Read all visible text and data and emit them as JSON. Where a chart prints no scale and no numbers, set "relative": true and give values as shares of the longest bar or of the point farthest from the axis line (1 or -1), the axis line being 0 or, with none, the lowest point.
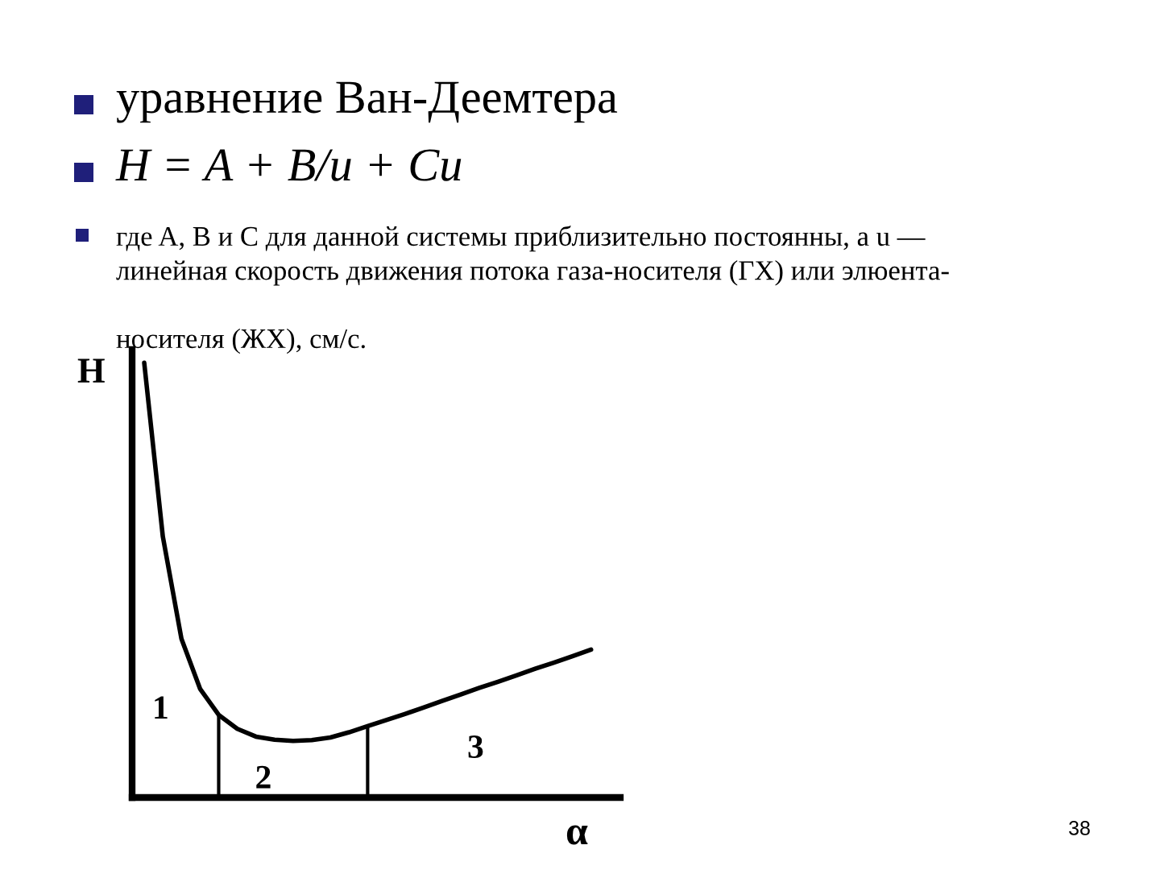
{
  "chart_data": {
    "type": "line",
    "title": "уравнение Ван-Деемтера",
    "subtitle": "H = A + B/u + Cu",
    "xlabel": "α",
    "ylabel": "H",
    "relative": true,
    "grid": false,
    "legend": false,
    "categories": [
      null,
      null,
      null,
      null,
      null,
      null,
      null,
      null,
      null,
      null,
      null,
      null,
      null,
      null,
      null,
      null,
      null,
      null,
      null,
      null,
      null,
      null,
      null,
      null,
      null
    ],
    "series": [
      {
        "color": "#000000",
        "values": [
          1.0,
          0.6,
          0.365,
          0.25,
          0.19,
          0.158,
          0.14,
          0.133,
          0.13,
          0.132,
          0.138,
          0.15,
          0.164,
          0.178,
          0.192,
          0.207,
          0.222,
          0.237,
          0.252,
          0.266,
          0.281,
          0.296,
          0.31,
          0.325,
          0.34
        ]
      }
    ],
    "annotations": [
      "где A, B и C для данной системы приблизительно постоянны, а u —\nлинейная скорость движения потока газа-носителя (ГХ) или элюента-\n\nносителя (ЖХ), см/с.",
      "1",
      "2",
      "3",
      "38"
    ]
  }
}
